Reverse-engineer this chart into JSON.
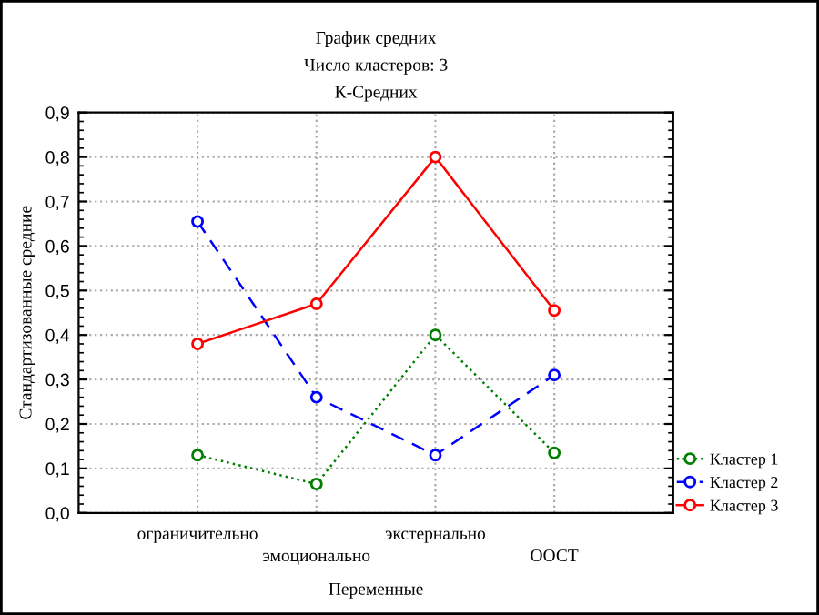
{
  "chart_data": {
    "type": "line",
    "title": "График средних\nЧисло кластеров: 3\nК-Средних",
    "xlabel": "Переменные",
    "ylabel": "Стандартизованные средние",
    "categories": [
      "ограничительно",
      "эмоционально",
      "экстернально",
      "ООСТ"
    ],
    "series": [
      {
        "name": "Кластер 1",
        "color": "#008000",
        "values": [
          0.13,
          0.065,
          0.4,
          0.135
        ],
        "line_style": "dotted"
      },
      {
        "name": "Кластер 2",
        "color": "#0000ff",
        "values": [
          0.655,
          0.26,
          0.13,
          0.31
        ],
        "line_style": "dashed"
      },
      {
        "name": "Кластер 3",
        "color": "#ff0000",
        "values": [
          0.38,
          0.47,
          0.8,
          0.455
        ],
        "line_style": "solid"
      }
    ],
    "ylim": [
      0,
      0.9
    ],
    "yticks": [
      {
        "value": 0,
        "label": "0,0"
      },
      {
        "value": 0.1,
        "label": "0,1"
      },
      {
        "value": 0.2,
        "label": "0,2"
      },
      {
        "value": 0.3,
        "label": "0,3"
      },
      {
        "value": 0.4,
        "label": "0,4"
      },
      {
        "value": 0.5,
        "label": "0,5"
      },
      {
        "value": 0.6,
        "label": "0,6"
      },
      {
        "value": 0.7,
        "label": "0,7"
      },
      {
        "value": 0.8,
        "label": "0,8"
      },
      {
        "value": 0.9,
        "label": "0,9"
      }
    ],
    "grid": true,
    "legend": "bottom right",
    "marker": "circle"
  }
}
